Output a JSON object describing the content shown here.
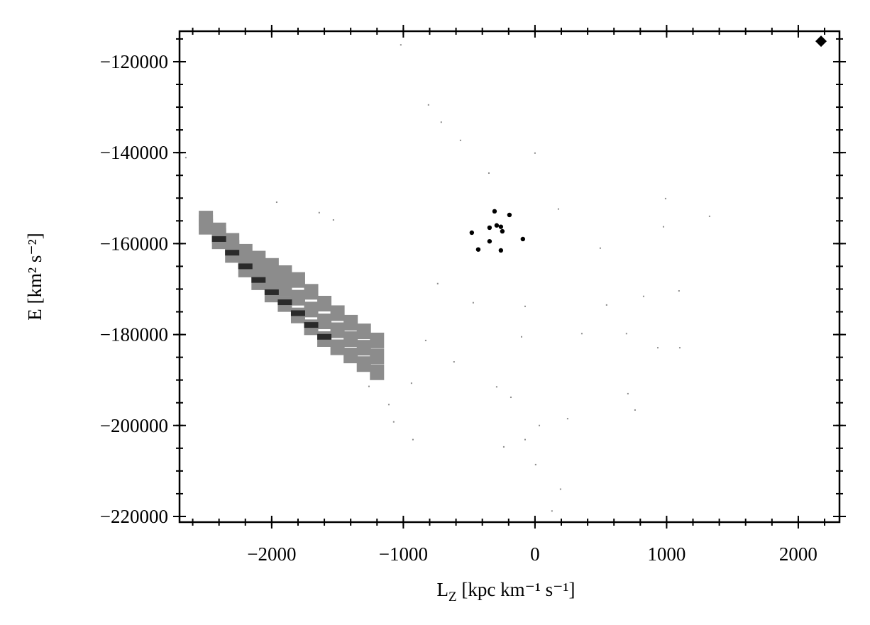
{
  "chart_data": {
    "type": "scatter",
    "xlabel": {
      "main": "L",
      "sub": "Z",
      "rest": " [kpc km⁻¹ s⁻¹]"
    },
    "ylabel": "E [km² s⁻²]",
    "xlim": [
      -2700,
      2313
    ],
    "ylim": [
      -221250,
      -113300
    ],
    "xticks": [
      {
        "value": -2000,
        "label": "−2000"
      },
      {
        "value": -1000,
        "label": "−1000"
      },
      0,
      1000,
      2000
    ],
    "yticks": [
      {
        "value": -120000,
        "label": "−120000"
      },
      {
        "value": -140000,
        "label": "−140000"
      },
      {
        "value": -160000,
        "label": "−160000"
      },
      {
        "value": -180000,
        "label": "−180000"
      },
      {
        "value": -200000,
        "label": "−200000"
      },
      {
        "value": -220000,
        "label": "−220000"
      }
    ],
    "xminor_step": 200,
    "yminor_step": 5000,
    "series": [
      {
        "color": "#8c8c8c",
        "marker": "band",
        "x": [
          -2500,
          -2400,
          -2300,
          -2200,
          -2100,
          -2000,
          -1900,
          -1800,
          -1700,
          -1600,
          -1500,
          -1400,
          -1300,
          -1200,
          -2500,
          -2400,
          -2300,
          -2200,
          -2100,
          -2000,
          -1900,
          -1800,
          -1700,
          -1600,
          -1500,
          -1400,
          -1300,
          -1200,
          -2500,
          -2400,
          -2300,
          -2200,
          -2100,
          -2000,
          -1900,
          -1800,
          -1700,
          -1600,
          -1500,
          -1400,
          -1300,
          -1200
        ],
        "values": [
          -156300,
          -159500,
          -162500,
          -165700,
          -168500,
          -171200,
          -173300,
          -175800,
          -178400,
          -181000,
          -182800,
          -184600,
          -186500,
          -188300,
          -155400,
          -158300,
          -160950,
          -163750,
          -165900,
          -168050,
          -169900,
          -171900,
          -174500,
          -177100,
          -179050,
          -181000,
          -182900,
          -184800,
          -154500,
          -157100,
          -159400,
          -161800,
          -163300,
          -164900,
          -166500,
          -168000,
          -170600,
          -173200,
          -175300,
          -177400,
          -179300,
          -181300
        ]
      },
      {
        "color": "#2a2a2a",
        "marker": "edge",
        "x": [
          -2400,
          -2300,
          -2200,
          -2100,
          -2000,
          -1900,
          -1800,
          -1700,
          -1600
        ],
        "values": [
          -159000,
          -162000,
          -165000,
          -168000,
          -170700,
          -172900,
          -175300,
          -177900,
          -180500
        ]
      },
      {
        "color": "#8c8c8c",
        "marker": "dot",
        "x": [
          -1019,
          -809,
          -712,
          -566,
          -350,
          0,
          992,
          1326,
          178,
          496,
          976,
          -739,
          -469,
          -75,
          544,
          825,
          1094,
          -102,
          356,
          695,
          933,
          1100,
          -830,
          -615,
          -938,
          -291,
          -183,
          33,
          248,
          706,
          760,
          -1073,
          -927,
          -237,
          -75,
          5,
          194,
          129,
          -1110,
          -1261,
          -2652,
          -1639,
          -1962,
          -1531
        ],
        "values": [
          -116300,
          -129500,
          -133300,
          -137300,
          -144500,
          -140100,
          -150100,
          -154000,
          -152400,
          -161000,
          -156300,
          -168800,
          -173000,
          -173800,
          -173500,
          -171600,
          -170400,
          -180500,
          -179800,
          -179800,
          -182900,
          -182900,
          -181300,
          -186000,
          -190700,
          -191500,
          -193800,
          -200000,
          -198500,
          -193000,
          -196600,
          -199200,
          -203100,
          -204700,
          -203100,
          -208600,
          -214000,
          -218800,
          -195400,
          -191400,
          -141100,
          -153200,
          -150900,
          -154800
        ]
      },
      {
        "color": "#000000",
        "marker": "circle",
        "x": [
          -307,
          -194,
          -345,
          -291,
          -259,
          -248,
          -480,
          -92,
          -345,
          -431,
          -259
        ],
        "values": [
          -152900,
          -153700,
          -156500,
          -156000,
          -156300,
          -157300,
          -157600,
          -159000,
          -159500,
          -161300,
          -161500
        ]
      },
      {
        "color": "#000000",
        "marker": "diamond",
        "x": [
          2173
        ],
        "values": [
          -115500
        ]
      }
    ]
  }
}
